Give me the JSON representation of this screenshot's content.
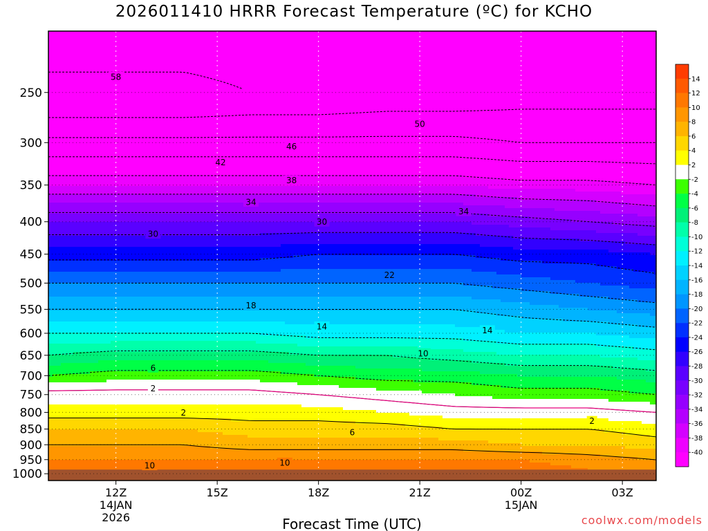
{
  "title": "2026011410 HRRR Forecast Temperature (ºC) for KCHO",
  "credit": "coolwx.com/models",
  "colors": {
    "fill_bands": [
      {
        "max": -40,
        "color": "#ff00ff"
      },
      {
        "max": -38,
        "color": "#ee00ff"
      },
      {
        "max": -36,
        "color": "#d400ff"
      },
      {
        "max": -34,
        "color": "#b400ff"
      },
      {
        "max": -32,
        "color": "#9600ff"
      },
      {
        "max": -30,
        "color": "#7800ff"
      },
      {
        "max": -28,
        "color": "#5a00ff"
      },
      {
        "max": -26,
        "color": "#3200ff"
      },
      {
        "max": -24,
        "color": "#0000ff"
      },
      {
        "max": -22,
        "color": "#0030ff"
      },
      {
        "max": -20,
        "color": "#0064ff"
      },
      {
        "max": -18,
        "color": "#0096ff"
      },
      {
        "max": -16,
        "color": "#00b4ff"
      },
      {
        "max": -14,
        "color": "#00d2ff"
      },
      {
        "max": -12,
        "color": "#00f0ff"
      },
      {
        "max": -10,
        "color": "#00ffd8"
      },
      {
        "max": -8,
        "color": "#00ffaa"
      },
      {
        "max": -6,
        "color": "#00f078"
      },
      {
        "max": -4,
        "color": "#00ff46"
      },
      {
        "max": -2,
        "color": "#3cff00"
      },
      {
        "max": 2,
        "color": "#ffffff"
      },
      {
        "max": 4,
        "color": "#ffff00"
      },
      {
        "max": 6,
        "color": "#ffd700"
      },
      {
        "max": 8,
        "color": "#ffb400"
      },
      {
        "max": 10,
        "color": "#ff9600"
      },
      {
        "max": 12,
        "color": "#ff7800"
      },
      {
        "max": 14,
        "color": "#ff5a00"
      },
      {
        "max": 99,
        "color": "#ff3c00"
      }
    ],
    "ground": "#a0522d",
    "freezing_line": "#e6007e",
    "credit": "#e8474b"
  },
  "chart_data": {
    "type": "heatmap",
    "title": "2026011410 HRRR Forecast Temperature (ºC) for KCHO",
    "xlabel": "Forecast Time (UTC)",
    "ylabel": "",
    "x_ticks": [
      {
        "hour": 12,
        "label": "12Z",
        "sublabel": "14JAN",
        "sublabel2": "2026"
      },
      {
        "hour": 15,
        "label": "15Z",
        "sublabel": "",
        "sublabel2": ""
      },
      {
        "hour": 18,
        "label": "18Z",
        "sublabel": "",
        "sublabel2": ""
      },
      {
        "hour": 21,
        "label": "21Z",
        "sublabel": "",
        "sublabel2": ""
      },
      {
        "hour": 24,
        "label": "00Z",
        "sublabel": "15JAN",
        "sublabel2": ""
      },
      {
        "hour": 27,
        "label": "03Z",
        "sublabel": "",
        "sublabel2": ""
      }
    ],
    "xlim": [
      10,
      28
    ],
    "y_ticks": [
      250,
      300,
      350,
      400,
      450,
      500,
      550,
      600,
      650,
      700,
      750,
      800,
      850,
      900,
      950,
      1000
    ],
    "ylim": [
      200,
      1025
    ],
    "y_scale": "log-pressure",
    "ground_pressure": 985,
    "grid": true,
    "colorbar_ticks": [
      14,
      12,
      10,
      8,
      6,
      4,
      2,
      -2,
      -4,
      -6,
      -8,
      -10,
      -12,
      -14,
      -16,
      -18,
      -20,
      -22,
      -24,
      -26,
      -28,
      -30,
      -32,
      -34,
      -36,
      -38,
      -40
    ],
    "hours": [
      10,
      12,
      14,
      16,
      18,
      20,
      22,
      24,
      26,
      28
    ],
    "levels": [
      {
        "p": 200,
        "t": [
          -54,
          -54,
          -54,
          -54,
          -53,
          -53,
          -53,
          -53,
          -53,
          -53
        ]
      },
      {
        "p": 250,
        "t": [
          -57,
          -57,
          -57,
          -56,
          -56,
          -55,
          -55,
          -54,
          -54,
          -54
        ]
      },
      {
        "p": 300,
        "t": [
          -47,
          -47,
          -47,
          -47,
          -47,
          -47,
          -47,
          -48,
          -48,
          -48
        ]
      },
      {
        "p": 350,
        "t": [
          -38,
          -38,
          -38,
          -38,
          -38,
          -38,
          -38,
          -39,
          -39,
          -40
        ]
      },
      {
        "p": 400,
        "t": [
          -30,
          -30,
          -30,
          -30,
          -30,
          -30,
          -30,
          -31,
          -32,
          -33
        ]
      },
      {
        "p": 450,
        "t": [
          -25,
          -25,
          -25,
          -25,
          -24,
          -24,
          -24,
          -25,
          -25,
          -26
        ]
      },
      {
        "p": 500,
        "t": [
          -20,
          -20,
          -20,
          -20,
          -20,
          -20,
          -20,
          -21,
          -22,
          -23
        ]
      },
      {
        "p": 550,
        "t": [
          -16,
          -16,
          -16,
          -16,
          -16,
          -16,
          -16,
          -17,
          -18,
          -19
        ]
      },
      {
        "p": 600,
        "t": [
          -12,
          -12,
          -12,
          -12,
          -13,
          -13,
          -13,
          -14,
          -14,
          -15
        ]
      },
      {
        "p": 650,
        "t": [
          -8,
          -7,
          -7,
          -7,
          -8,
          -8,
          -9,
          -10,
          -10,
          -11
        ]
      },
      {
        "p": 700,
        "t": [
          -4,
          -3,
          -3,
          -3,
          -4,
          -5,
          -5,
          -6,
          -6,
          -7
        ]
      },
      {
        "p": 750,
        "t": [
          1,
          1,
          1,
          1,
          0,
          -1,
          -2,
          -3,
          -3,
          -4
        ]
      },
      {
        "p": 800,
        "t": [
          3,
          3,
          3,
          3,
          3,
          2,
          1,
          1,
          1,
          0
        ]
      },
      {
        "p": 850,
        "t": [
          6,
          6,
          6,
          5,
          5,
          5,
          4,
          4,
          4,
          3
        ]
      },
      {
        "p": 900,
        "t": [
          8,
          8,
          8,
          7,
          7,
          7,
          7,
          6,
          6,
          5
        ]
      },
      {
        "p": 950,
        "t": [
          10,
          10,
          10,
          10,
          10,
          10,
          10,
          10,
          9,
          8
        ]
      },
      {
        "p": 985,
        "t": [
          12,
          12,
          11,
          11,
          11,
          12,
          12,
          11,
          10,
          9
        ]
      }
    ],
    "contour_labels": [
      {
        "value": "58",
        "hour": 12.0,
        "p": 236
      },
      {
        "value": "50",
        "hour": 21.0,
        "p": 280
      },
      {
        "value": "46",
        "hour": 17.2,
        "p": 304
      },
      {
        "value": "42",
        "hour": 15.1,
        "p": 322
      },
      {
        "value": "38",
        "hour": 17.2,
        "p": 344
      },
      {
        "value": "34",
        "hour": 16.0,
        "p": 372
      },
      {
        "value": "34",
        "hour": 22.3,
        "p": 385
      },
      {
        "value": "30",
        "hour": 18.1,
        "p": 400
      },
      {
        "value": "30",
        "hour": 13.1,
        "p": 418
      },
      {
        "value": "22",
        "hour": 20.1,
        "p": 485
      },
      {
        "value": "18",
        "hour": 16.0,
        "p": 542
      },
      {
        "value": "14",
        "hour": 18.1,
        "p": 585
      },
      {
        "value": "14",
        "hour": 23.0,
        "p": 593
      },
      {
        "value": "10",
        "hour": 21.1,
        "p": 645
      },
      {
        "value": "6",
        "hour": 13.1,
        "p": 680
      },
      {
        "value": "2",
        "hour": 13.1,
        "p": 733
      },
      {
        "value": "2",
        "hour": 14.0,
        "p": 800
      },
      {
        "value": "2",
        "hour": 26.1,
        "p": 825
      },
      {
        "value": "6",
        "hour": 19.0,
        "p": 860
      },
      {
        "value": "10",
        "hour": 17.0,
        "p": 960
      },
      {
        "value": "10",
        "hour": 13.0,
        "p": 970
      }
    ]
  }
}
